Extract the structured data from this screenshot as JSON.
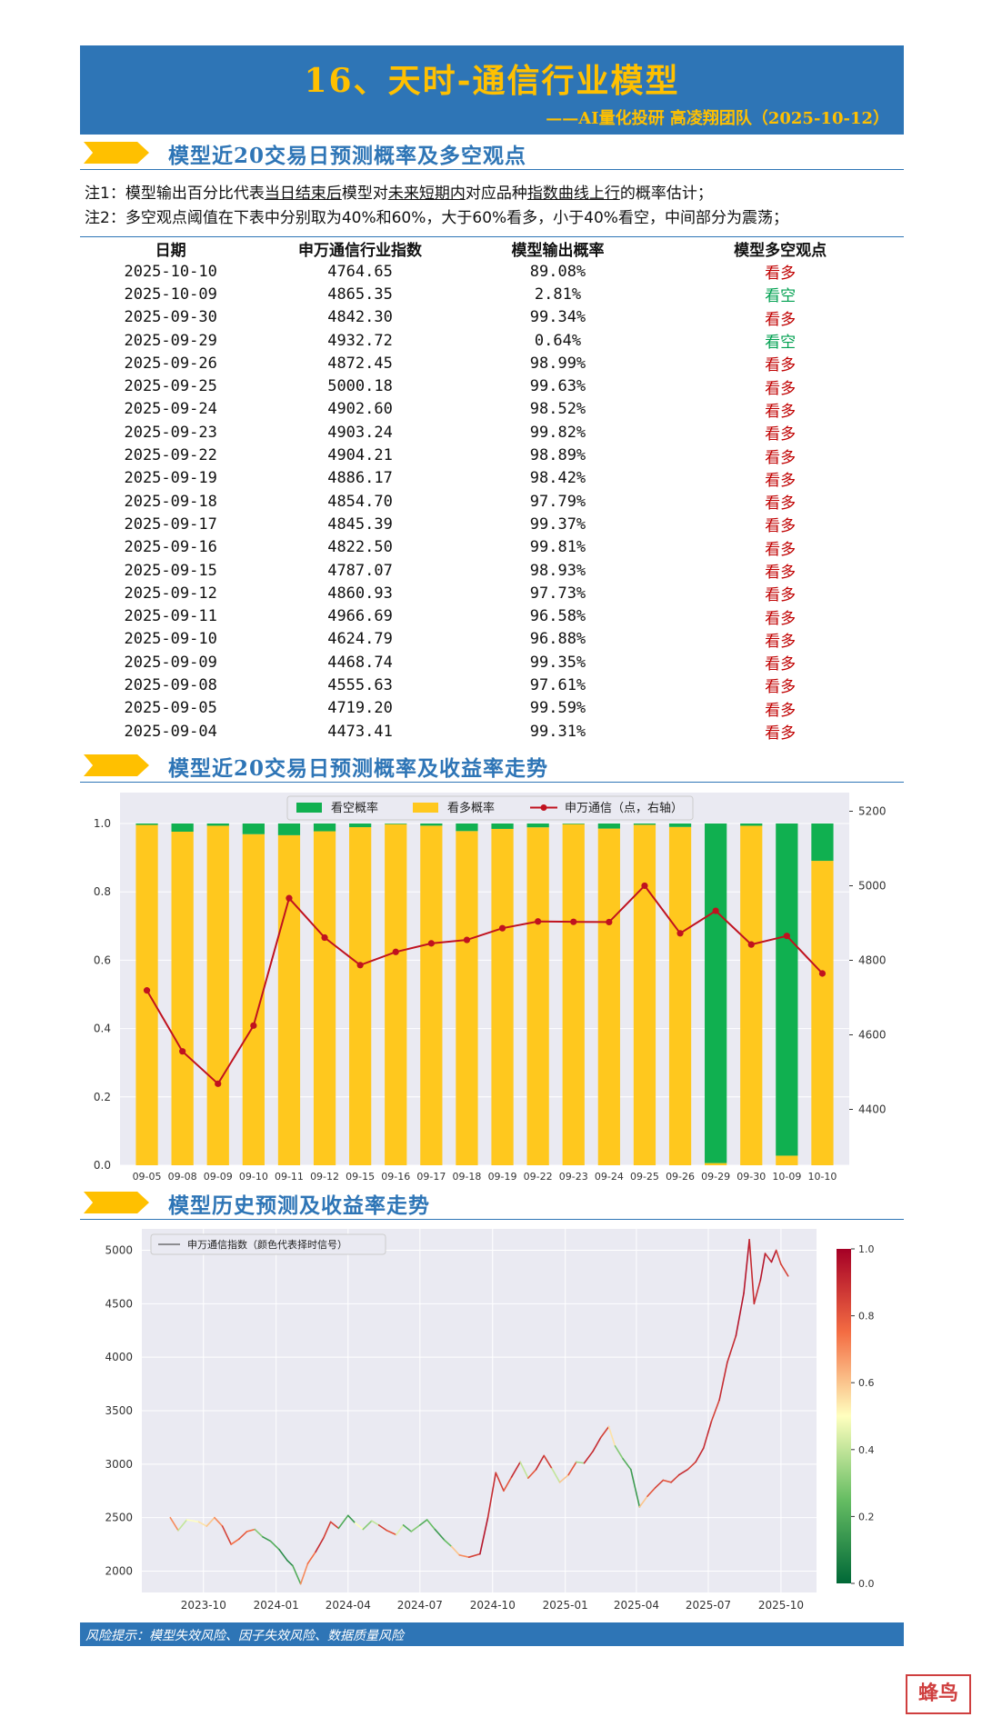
{
  "header": {
    "title": "16、天时-通信行业模型",
    "subtitle": "——AI量化投研 高凌翔团队（2025-10-12）"
  },
  "section1": {
    "title": "模型近20交易日预测概率及多空观点"
  },
  "notes": {
    "note1": {
      "prefix": "注1：模型输出百分比代表",
      "u1": "当日结束后",
      "mid1": "模型对",
      "u2": "未来短期内",
      "mid2": "对应品种",
      "u3": "指数曲线上行",
      "suffix": "的概率估计；"
    },
    "note2": "注2：多空观点阈值在下表中分别取为40%和60%，大于60%看多，小于40%看空，中间部分为震荡；"
  },
  "table": {
    "headers": [
      "日期",
      "申万通信行业指数",
      "模型输出概率",
      "模型多空观点"
    ],
    "rows": [
      {
        "date": "2025-10-10",
        "index": "4764.65",
        "prob": "89.08%",
        "view": "看多",
        "type": "bull"
      },
      {
        "date": "2025-10-09",
        "index": "4865.35",
        "prob": "2.81%",
        "view": "看空",
        "type": "bear"
      },
      {
        "date": "2025-09-30",
        "index": "4842.30",
        "prob": "99.34%",
        "view": "看多",
        "type": "bull"
      },
      {
        "date": "2025-09-29",
        "index": "4932.72",
        "prob": "0.64%",
        "view": "看空",
        "type": "bear"
      },
      {
        "date": "2025-09-26",
        "index": "4872.45",
        "prob": "98.99%",
        "view": "看多",
        "type": "bull"
      },
      {
        "date": "2025-09-25",
        "index": "5000.18",
        "prob": "99.63%",
        "view": "看多",
        "type": "bull"
      },
      {
        "date": "2025-09-24",
        "index": "4902.60",
        "prob": "98.52%",
        "view": "看多",
        "type": "bull"
      },
      {
        "date": "2025-09-23",
        "index": "4903.24",
        "prob": "99.82%",
        "view": "看多",
        "type": "bull"
      },
      {
        "date": "2025-09-22",
        "index": "4904.21",
        "prob": "98.89%",
        "view": "看多",
        "type": "bull"
      },
      {
        "date": "2025-09-19",
        "index": "4886.17",
        "prob": "98.42%",
        "view": "看多",
        "type": "bull"
      },
      {
        "date": "2025-09-18",
        "index": "4854.70",
        "prob": "97.79%",
        "view": "看多",
        "type": "bull"
      },
      {
        "date": "2025-09-17",
        "index": "4845.39",
        "prob": "99.37%",
        "view": "看多",
        "type": "bull"
      },
      {
        "date": "2025-09-16",
        "index": "4822.50",
        "prob": "99.81%",
        "view": "看多",
        "type": "bull"
      },
      {
        "date": "2025-09-15",
        "index": "4787.07",
        "prob": "98.93%",
        "view": "看多",
        "type": "bull"
      },
      {
        "date": "2025-09-12",
        "index": "4860.93",
        "prob": "97.73%",
        "view": "看多",
        "type": "bull"
      },
      {
        "date": "2025-09-11",
        "index": "4966.69",
        "prob": "96.58%",
        "view": "看多",
        "type": "bull"
      },
      {
        "date": "2025-09-10",
        "index": "4624.79",
        "prob": "96.88%",
        "view": "看多",
        "type": "bull"
      },
      {
        "date": "2025-09-09",
        "index": "4468.74",
        "prob": "99.35%",
        "view": "看多",
        "type": "bull"
      },
      {
        "date": "2025-09-08",
        "index": "4555.63",
        "prob": "97.61%",
        "view": "看多",
        "type": "bull"
      },
      {
        "date": "2025-09-05",
        "index": "4719.20",
        "prob": "99.59%",
        "view": "看多",
        "type": "bull"
      },
      {
        "date": "2025-09-04",
        "index": "4473.41",
        "prob": "99.31%",
        "view": "看多",
        "type": "bull"
      }
    ]
  },
  "section2": {
    "title": "模型近20交易日预测概率及收益率走势"
  },
  "section3": {
    "title": "模型历史预测及收益率走势"
  },
  "footer": {
    "text": "风险提示：模型失效风险、因子失效风险、数据质量风险"
  },
  "stamp": {
    "text": "蜂鸟"
  },
  "colors": {
    "bull": "#ffc81e",
    "bear": "#10b050",
    "line": "#c0121f",
    "brand": "#2e75b6",
    "accent": "#ffc000"
  },
  "chart_data": [
    {
      "type": "bar",
      "stacked": true,
      "categories": [
        "09-05",
        "09-08",
        "09-09",
        "09-10",
        "09-11",
        "09-12",
        "09-15",
        "09-16",
        "09-17",
        "09-18",
        "09-19",
        "09-22",
        "09-23",
        "09-24",
        "09-25",
        "09-26",
        "09-29",
        "09-30",
        "10-09",
        "10-10"
      ],
      "series": [
        {
          "name": "看空概率",
          "color": "#10b050",
          "values": [
            0.0041,
            0.0239,
            0.0065,
            0.0312,
            0.0342,
            0.0227,
            0.0107,
            0.0019,
            0.0063,
            0.0221,
            0.0158,
            0.0111,
            0.0018,
            0.0148,
            0.0037,
            0.0101,
            0.9936,
            0.0066,
            0.9719,
            0.1092
          ]
        },
        {
          "name": "看多概率",
          "color": "#ffc81e",
          "values": [
            0.9959,
            0.9761,
            0.9935,
            0.9688,
            0.9658,
            0.9773,
            0.9893,
            0.9981,
            0.9937,
            0.9779,
            0.9842,
            0.9889,
            0.9982,
            0.9852,
            0.9963,
            0.9899,
            0.0064,
            0.9934,
            0.0281,
            0.8908
          ]
        },
        {
          "name": "申万通信（点，右轴）",
          "axis": "right",
          "type": "line",
          "color": "#c0121f",
          "values": [
            4719.2,
            4555.63,
            4468.74,
            4624.79,
            4966.69,
            4860.93,
            4787.07,
            4822.5,
            4845.39,
            4854.7,
            4886.17,
            4904.21,
            4903.24,
            4902.6,
            5000.18,
            4872.45,
            4932.72,
            4842.3,
            4865.35,
            4764.65
          ]
        }
      ],
      "ylim": [
        0,
        1.0
      ],
      "y_ticks": [
        "0.0",
        "0.2",
        "0.4",
        "0.6",
        "0.8",
        "1.0"
      ],
      "y2lim": [
        4250,
        5250
      ],
      "y2_ticks": [
        "4400",
        "4600",
        "4800",
        "5000",
        "5200"
      ],
      "legend": "top-center",
      "grid": true
    },
    {
      "type": "line",
      "series": [
        {
          "name": "申万通信指数（颜色代表择时信号）"
        }
      ],
      "x_ticks": [
        "2023-10",
        "2024-01",
        "2024-04",
        "2024-07",
        "2024-10",
        "2025-01",
        "2025-04",
        "2025-07",
        "2025-10"
      ],
      "y_ticks": [
        "2000",
        "2500",
        "3000",
        "3500",
        "4000",
        "4500",
        "5000"
      ],
      "ylim": [
        1800,
        5200
      ],
      "colorbar_ticks": [
        "0.0",
        "0.2",
        "0.4",
        "0.6",
        "0.8",
        "1.0"
      ],
      "colormap": "RdYlGn_r",
      "points": [
        [
          "2023-08-20",
          2500,
          0.2
        ],
        [
          "2023-08-30",
          2380,
          0.7
        ],
        [
          "2023-09-10",
          2480,
          0.4
        ],
        [
          "2023-09-25",
          2460,
          0.5
        ],
        [
          "2023-10-05",
          2420,
          0.55
        ],
        [
          "2023-10-15",
          2500,
          0.6
        ],
        [
          "2023-10-25",
          2420,
          0.7
        ],
        [
          "2023-11-05",
          2250,
          0.85
        ],
        [
          "2023-11-15",
          2300,
          0.75
        ],
        [
          "2023-11-25",
          2370,
          0.8
        ],
        [
          "2023-12-05",
          2390,
          0.75
        ],
        [
          "2023-12-15",
          2320,
          0.3
        ],
        [
          "2023-12-25",
          2280,
          0.15
        ],
        [
          "2024-01-05",
          2200,
          0.2
        ],
        [
          "2024-01-15",
          2100,
          0.1
        ],
        [
          "2024-01-22",
          2050,
          0.1
        ],
        [
          "2024-02-01",
          1880,
          0.2
        ],
        [
          "2024-02-10",
          2070,
          0.7
        ],
        [
          "2024-02-20",
          2180,
          0.75
        ],
        [
          "2024-03-01",
          2310,
          0.9
        ],
        [
          "2024-03-10",
          2460,
          0.85
        ],
        [
          "2024-03-20",
          2400,
          0.85
        ],
        [
          "2024-04-01",
          2520,
          0.2
        ],
        [
          "2024-04-10",
          2450,
          0.15
        ],
        [
          "2024-04-20",
          2390,
          0.5
        ],
        [
          "2024-05-01",
          2470,
          0.3
        ],
        [
          "2024-05-10",
          2430,
          0.4
        ],
        [
          "2024-05-20",
          2380,
          0.85
        ],
        [
          "2024-06-01",
          2340,
          0.8
        ],
        [
          "2024-06-10",
          2430,
          0.45
        ],
        [
          "2024-06-20",
          2370,
          0.2
        ],
        [
          "2024-07-01",
          2430,
          0.3
        ],
        [
          "2024-07-10",
          2480,
          0.2
        ],
        [
          "2024-07-20",
          2390,
          0.25
        ],
        [
          "2024-08-01",
          2290,
          0.15
        ],
        [
          "2024-08-10",
          2230,
          0.25
        ],
        [
          "2024-08-20",
          2150,
          0.6
        ],
        [
          "2024-09-01",
          2130,
          0.7
        ],
        [
          "2024-09-15",
          2160,
          0.85
        ],
        [
          "2024-09-25",
          2500,
          0.95
        ],
        [
          "2024-10-05",
          2920,
          0.9
        ],
        [
          "2024-10-15",
          2750,
          0.85
        ],
        [
          "2024-10-25",
          2880,
          0.8
        ],
        [
          "2024-11-05",
          3020,
          0.9
        ],
        [
          "2024-11-15",
          2870,
          0.4
        ],
        [
          "2024-11-25",
          2950,
          0.8
        ],
        [
          "2024-12-05",
          3080,
          0.9
        ],
        [
          "2024-12-15",
          2960,
          0.85
        ],
        [
          "2024-12-25",
          2830,
          0.4
        ],
        [
          "2025-01-05",
          2900,
          0.6
        ],
        [
          "2025-01-15",
          3020,
          0.8
        ],
        [
          "2025-01-25",
          3010,
          0.35
        ],
        [
          "2025-02-05",
          3120,
          0.9
        ],
        [
          "2025-02-15",
          3250,
          0.9
        ],
        [
          "2025-02-25",
          3350,
          0.85
        ],
        [
          "2025-03-05",
          3170,
          0.55
        ],
        [
          "2025-03-15",
          3050,
          0.3
        ],
        [
          "2025-03-25",
          2950,
          0.2
        ],
        [
          "2025-04-05",
          2600,
          0.15
        ],
        [
          "2025-04-15",
          2700,
          0.6
        ],
        [
          "2025-04-25",
          2780,
          0.8
        ],
        [
          "2025-05-05",
          2850,
          0.85
        ],
        [
          "2025-05-15",
          2830,
          0.8
        ],
        [
          "2025-05-25",
          2900,
          0.85
        ],
        [
          "2025-06-05",
          2950,
          0.9
        ],
        [
          "2025-06-15",
          3020,
          0.85
        ],
        [
          "2025-06-25",
          3150,
          0.9
        ],
        [
          "2025-07-05",
          3400,
          0.9
        ],
        [
          "2025-07-15",
          3600,
          0.85
        ],
        [
          "2025-07-25",
          3950,
          0.9
        ],
        [
          "2025-08-05",
          4200,
          0.9
        ],
        [
          "2025-08-15",
          4600,
          0.95
        ],
        [
          "2025-08-22",
          5100,
          0.95
        ],
        [
          "2025-08-28",
          4500,
          0.9
        ],
        [
          "2025-09-05",
          4720,
          0.9
        ],
        [
          "2025-09-11",
          4970,
          0.95
        ],
        [
          "2025-09-19",
          4890,
          0.9
        ],
        [
          "2025-09-25",
          5000,
          0.95
        ],
        [
          "2025-10-01",
          4870,
          0.85
        ],
        [
          "2025-10-10",
          4760,
          0.85
        ]
      ]
    }
  ]
}
